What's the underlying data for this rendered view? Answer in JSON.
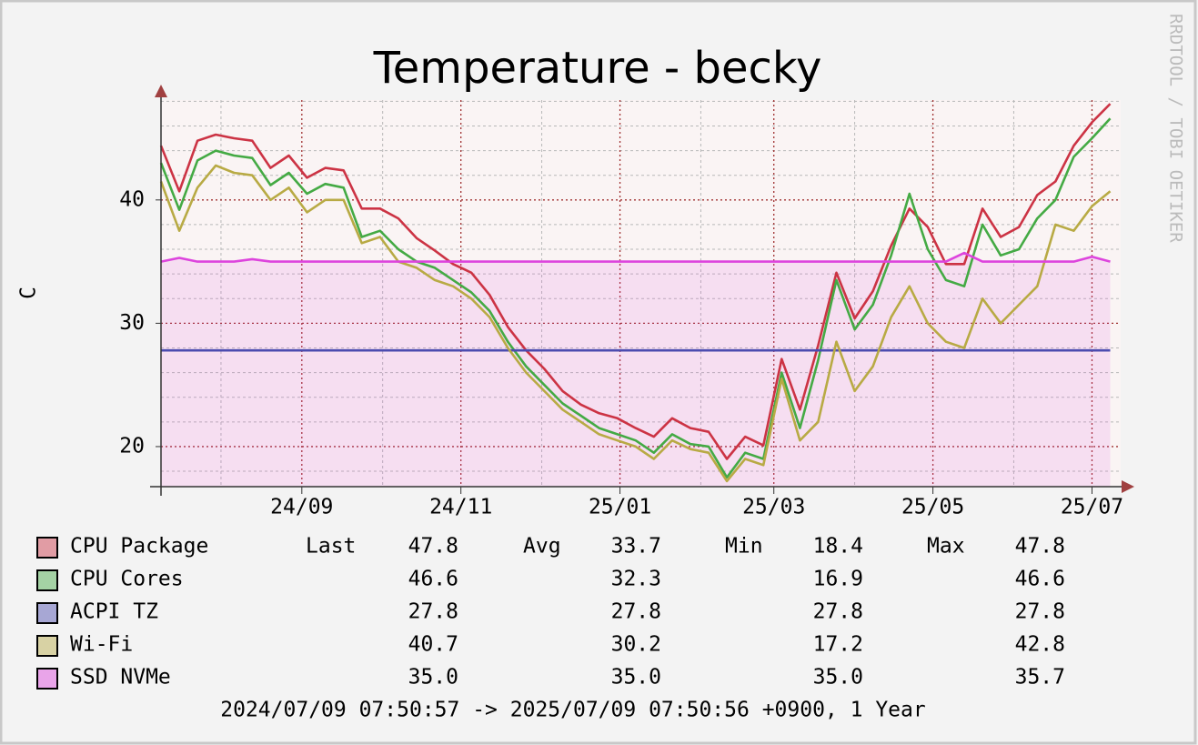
{
  "chart_data": {
    "type": "line",
    "title": "Temperature - becky",
    "y_label": "C",
    "watermark": "RRDTOOL / TOBI OETIKER",
    "x": [
      0,
      7,
      14,
      21,
      28,
      35,
      42,
      49,
      56,
      63,
      70,
      77,
      84,
      91,
      98,
      105,
      112,
      119,
      126,
      133,
      140,
      147,
      154,
      161,
      168,
      175,
      182,
      189,
      196,
      203,
      210,
      217,
      224,
      231,
      238,
      245,
      252,
      259,
      266,
      273,
      280,
      287,
      294,
      301,
      308,
      315,
      322,
      329,
      336,
      343,
      350,
      357,
      364
    ],
    "xlim": [
      0,
      368
    ],
    "xticks": [
      {
        "value": 54,
        "label": "24/09"
      },
      {
        "value": 115,
        "label": "24/11"
      },
      {
        "value": 176,
        "label": "25/01"
      },
      {
        "value": 235,
        "label": "25/03"
      },
      {
        "value": 296,
        "label": "25/05"
      },
      {
        "value": 357,
        "label": "25/07"
      }
    ],
    "x_minor_ticks": [
      23,
      85,
      146,
      207,
      266,
      327
    ],
    "ylim": [
      16.75,
      48.1
    ],
    "yticks": [
      20,
      30,
      40
    ],
    "y_minor_ticks": [
      18,
      22,
      24,
      26,
      28,
      32,
      34,
      36,
      38,
      42,
      44,
      46,
      48
    ],
    "grid": true,
    "series": [
      {
        "name": "CPU Package",
        "color": "#cc3344",
        "values": [
          44.4,
          40.7,
          44.8,
          45.3,
          45.0,
          44.8,
          42.6,
          43.6,
          41.8,
          42.6,
          42.4,
          39.3,
          39.3,
          38.5,
          36.9,
          35.9,
          34.8,
          34.1,
          32.3,
          29.7,
          27.8,
          26.3,
          24.5,
          23.4,
          22.7,
          22.3,
          21.5,
          20.8,
          22.3,
          21.5,
          21.2,
          19.0,
          20.8,
          20.1,
          27.1,
          23.0,
          28.2,
          34.1,
          30.4,
          32.6,
          36.3,
          39.3,
          37.8,
          34.8,
          34.8,
          39.3,
          37.0,
          37.8,
          40.4,
          41.5,
          44.4,
          46.3,
          47.8
        ]
      },
      {
        "name": "CPU Cores",
        "color": "#44aa44",
        "values": [
          43.0,
          39.2,
          43.2,
          44.0,
          43.6,
          43.4,
          41.2,
          42.2,
          40.5,
          41.3,
          41.0,
          37.0,
          37.5,
          36.0,
          35.0,
          34.5,
          33.5,
          32.5,
          31.0,
          28.5,
          26.5,
          25.0,
          23.5,
          22.5,
          21.5,
          21.0,
          20.5,
          19.5,
          21.0,
          20.2,
          20.0,
          17.5,
          19.5,
          19.0,
          26.0,
          21.5,
          27.0,
          33.5,
          29.5,
          31.5,
          35.5,
          40.5,
          36.0,
          33.5,
          33.0,
          38.0,
          35.5,
          36.0,
          38.5,
          40.0,
          43.5,
          45.0,
          46.6
        ]
      },
      {
        "name": "ACPI TZ",
        "color": "#4c4cb0",
        "values": [
          27.8,
          27.8,
          27.8,
          27.8,
          27.8,
          27.8,
          27.8,
          27.8,
          27.8,
          27.8,
          27.8,
          27.8,
          27.8,
          27.8,
          27.8,
          27.8,
          27.8,
          27.8,
          27.8,
          27.8,
          27.8,
          27.8,
          27.8,
          27.8,
          27.8,
          27.8,
          27.8,
          27.8,
          27.8,
          27.8,
          27.8,
          27.8,
          27.8,
          27.8,
          27.8,
          27.8,
          27.8,
          27.8,
          27.8,
          27.8,
          27.8,
          27.8,
          27.8,
          27.8,
          27.8,
          27.8,
          27.8,
          27.8,
          27.8,
          27.8,
          27.8,
          27.8,
          27.8
        ]
      },
      {
        "name": "Wi-Fi",
        "color": "#b8aa44",
        "values": [
          41.5,
          37.5,
          41.0,
          42.8,
          42.2,
          42.0,
          40.0,
          41.0,
          39.0,
          40.0,
          40.0,
          36.5,
          37.0,
          35.0,
          34.5,
          33.5,
          33.0,
          32.0,
          30.5,
          28.0,
          26.0,
          24.5,
          23.0,
          22.0,
          21.0,
          20.5,
          20.0,
          19.0,
          20.5,
          19.8,
          19.5,
          17.2,
          19.0,
          18.5,
          25.5,
          20.5,
          22.0,
          28.5,
          24.5,
          26.5,
          30.5,
          33.0,
          30.0,
          28.5,
          28.0,
          32.0,
          30.0,
          31.5,
          33.0,
          38.0,
          37.5,
          39.5,
          40.7
        ]
      },
      {
        "name": "SSD NVMe",
        "color": "#dd44dd",
        "area": true,
        "values": [
          35.0,
          35.3,
          35.0,
          35.0,
          35.0,
          35.2,
          35.0,
          35.0,
          35.0,
          35.0,
          35.0,
          35.0,
          35.0,
          35.0,
          35.0,
          35.0,
          35.0,
          35.0,
          35.0,
          35.0,
          35.0,
          35.0,
          35.0,
          35.0,
          35.0,
          35.0,
          35.0,
          35.0,
          35.0,
          35.0,
          35.0,
          35.0,
          35.0,
          35.0,
          35.0,
          35.0,
          35.0,
          35.0,
          35.0,
          35.0,
          35.0,
          35.0,
          35.0,
          35.0,
          35.7,
          35.0,
          35.0,
          35.0,
          35.0,
          35.0,
          35.0,
          35.4,
          35.0
        ]
      }
    ],
    "legend_table": {
      "headers": [
        "Last",
        "Avg",
        "Min",
        "Max"
      ],
      "rows": [
        [
          "47.8",
          "33.7",
          "18.4",
          "47.8"
        ],
        [
          "46.6",
          "32.3",
          "16.9",
          "46.6"
        ],
        [
          "27.8",
          "27.8",
          "27.8",
          "27.8"
        ],
        [
          "40.7",
          "30.2",
          "17.2",
          "42.8"
        ],
        [
          "35.0",
          "35.0",
          "35.0",
          "35.7"
        ]
      ]
    },
    "footer": "2024/07/09 07:50:57 -> 2025/07/09 07:50:56 +0900, 1 Year"
  }
}
